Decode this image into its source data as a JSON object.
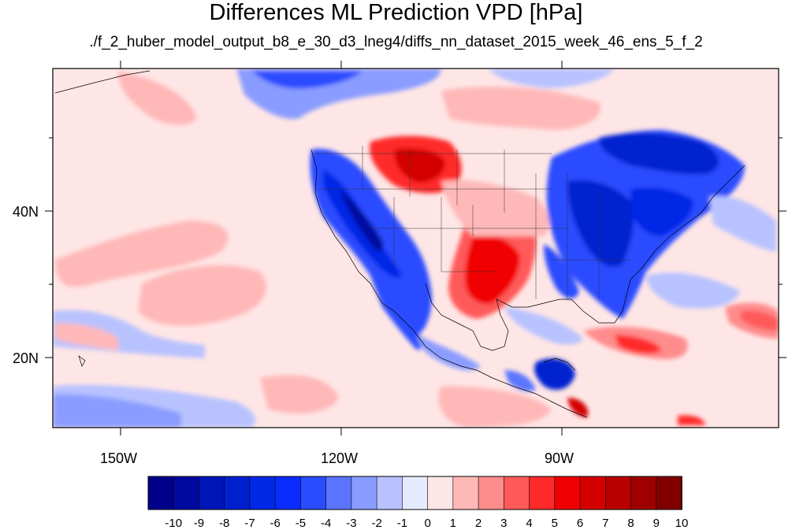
{
  "title": "Differences ML Prediction VPD [hPa]",
  "subtitle": "./f_2_huber_model_output_b8_e_30_d3_lneg4/diffs_nn_dataset_2015_week_46_ens_5_f_2",
  "axes": {
    "lat_labels": [
      "40N",
      "20N"
    ],
    "lon_labels": [
      "150W",
      "120W",
      "90W"
    ]
  },
  "colorbar": {
    "labels": [
      "-10",
      "-9",
      "-8",
      "-7",
      "-6",
      "-5",
      "-4",
      "-3",
      "-2",
      "-1",
      "0",
      "1",
      "2",
      "3",
      "4",
      "5",
      "6",
      "7",
      "8",
      "9",
      "10"
    ],
    "colors": [
      "#00008a",
      "#000aa0",
      "#0015b8",
      "#0020cf",
      "#0028e6",
      "#0a2cff",
      "#2a4cff",
      "#5a74ff",
      "#8a9cff",
      "#b8c2ff",
      "#e6eaff",
      "#ffe6e6",
      "#ffb8b8",
      "#ff8c8c",
      "#ff5a5a",
      "#ff2a2a",
      "#f00000",
      "#d40000",
      "#b80000",
      "#9e0000",
      "#800000"
    ]
  }
}
